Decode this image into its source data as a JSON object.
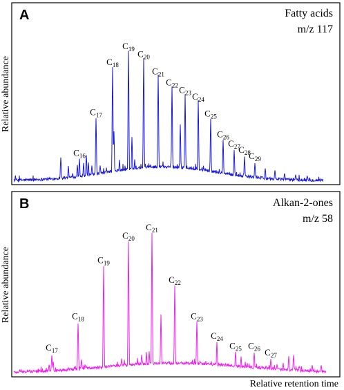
{
  "panels": [
    {
      "panel_label": "A",
      "title_line1": "Fatty acids",
      "title_line2": "m/z 117",
      "ylabel": "Relative abundance",
      "color": "#1a1adf",
      "peak_label_prefix": "C",
      "peaks": [
        {
          "n": "16",
          "height": 0.13,
          "labeled": true
        },
        {
          "n": "17",
          "height": 0.39,
          "labeled": true
        },
        {
          "n": "18",
          "height": 0.71,
          "labeled": true
        },
        {
          "n": "19",
          "height": 0.81,
          "labeled": true
        },
        {
          "n": "20",
          "height": 0.76,
          "labeled": true
        },
        {
          "n": "21",
          "height": 0.65,
          "labeled": true
        },
        {
          "n": "22",
          "height": 0.58,
          "labeled": true
        },
        {
          "n": "23",
          "height": 0.53,
          "labeled": true
        },
        {
          "n": "24",
          "height": 0.49,
          "labeled": true
        },
        {
          "n": "25",
          "height": 0.38,
          "labeled": true
        },
        {
          "n": "26",
          "height": 0.25,
          "labeled": true
        },
        {
          "n": "27",
          "height": 0.19,
          "labeled": true
        },
        {
          "n": "28",
          "height": 0.15,
          "labeled": true
        },
        {
          "n": "29",
          "height": 0.11,
          "labeled": true
        }
      ]
    },
    {
      "panel_label": "B",
      "title_line1": "Alkan-2-ones",
      "title_line2": "m/z 58",
      "ylabel": "Relative abundance",
      "color": "#ee22ee",
      "peak_label_prefix": "C",
      "peaks": [
        {
          "n": "17",
          "height": 0.11,
          "labeled": true
        },
        {
          "n": "18",
          "height": 0.3,
          "labeled": true
        },
        {
          "n": "19",
          "height": 0.64,
          "labeled": true
        },
        {
          "n": "20",
          "height": 0.79,
          "labeled": true
        },
        {
          "n": "21",
          "height": 0.84,
          "labeled": true
        },
        {
          "n": "22",
          "height": 0.52,
          "labeled": true
        },
        {
          "n": "23",
          "height": 0.3,
          "labeled": true
        },
        {
          "n": "24",
          "height": 0.18,
          "labeled": true
        },
        {
          "n": "25",
          "height": 0.12,
          "labeled": true
        },
        {
          "n": "26",
          "height": 0.12,
          "labeled": true
        },
        {
          "n": "27",
          "height": 0.08,
          "labeled": true
        }
      ]
    }
  ],
  "xlabel": "Relative retention time",
  "chart_data": [
    {
      "type": "line",
      "title": "Fatty acids m/z 117",
      "ylabel": "Relative abundance",
      "xlabel": "",
      "series": [
        {
          "name": "Fatty acids",
          "values": [
            0.13,
            0.39,
            0.71,
            0.81,
            0.76,
            0.65,
            0.58,
            0.53,
            0.49,
            0.38,
            0.25,
            0.19,
            0.15,
            0.11
          ]
        }
      ],
      "categories": [
        "C16",
        "C17",
        "C18",
        "C19",
        "C20",
        "C21",
        "C22",
        "C23",
        "C24",
        "C25",
        "C26",
        "C27",
        "C28",
        "C29"
      ],
      "grid": false
    },
    {
      "type": "line",
      "title": "Alkan-2-ones m/z 58",
      "ylabel": "Relative abundance",
      "xlabel": "Relative retention time",
      "series": [
        {
          "name": "Alkan-2-ones",
          "values": [
            0.11,
            0.3,
            0.64,
            0.79,
            0.84,
            0.52,
            0.3,
            0.18,
            0.12,
            0.12,
            0.08
          ]
        }
      ],
      "categories": [
        "C17",
        "C18",
        "C19",
        "C20",
        "C21",
        "C22",
        "C23",
        "C24",
        "C25",
        "C26",
        "C27"
      ],
      "grid": false
    }
  ]
}
